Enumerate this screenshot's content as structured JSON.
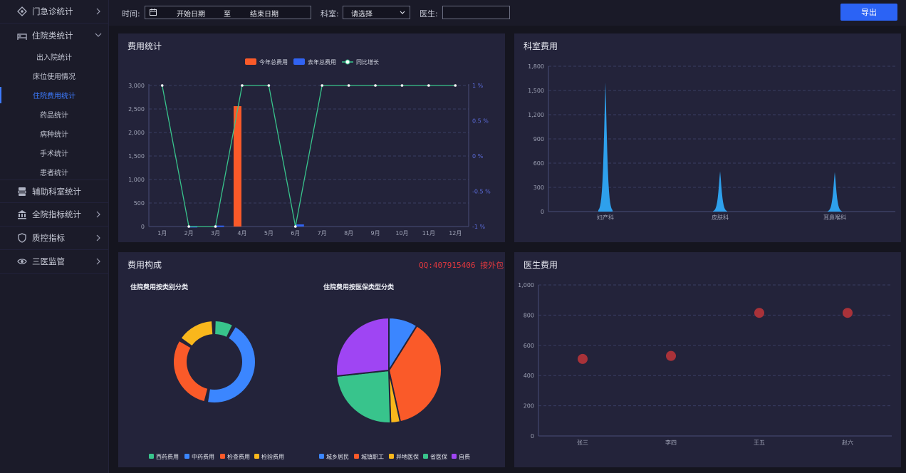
{
  "sidebar": {
    "items": [
      {
        "label": "门急诊统计",
        "icon": "diamond-icon",
        "expanded": false
      },
      {
        "label": "住院类统计",
        "icon": "bed-icon",
        "expanded": true
      },
      {
        "label": "辅助科室统计",
        "icon": "stack-icon",
        "expanded": false
      },
      {
        "label": "全院指标统计",
        "icon": "bank-icon",
        "expanded": false
      },
      {
        "label": "质控指标",
        "icon": "shield-icon",
        "expanded": false
      },
      {
        "label": "三医监管",
        "icon": "eye-icon",
        "expanded": false
      }
    ],
    "subitems": [
      "出入院统计",
      "床位使用情况",
      "住院费用统计",
      "药品统计",
      "病种统计",
      "手术统计",
      "患者统计"
    ],
    "active_subitem": "住院费用统计"
  },
  "toolbar": {
    "time_label": "时间:",
    "start_placeholder": "开始日期",
    "range_sep": "至",
    "end_placeholder": "结束日期",
    "dept_label": "科室:",
    "dept_value": "请选择",
    "doctor_label": "医生:",
    "doctor_value": "",
    "export_label": "导出"
  },
  "colors": {
    "accent": "#2b63f5",
    "orange": "#fa5a29",
    "blue": "#3163f2",
    "green": "#38c48c",
    "sky": "#2fa8f5",
    "red": "#b8343a"
  },
  "cost_stats": {
    "title": "费用统计",
    "chart_data": {
      "type": "bar",
      "categories": [
        "1月",
        "2月",
        "3月",
        "4月",
        "5月",
        "6月",
        "7月",
        "8月",
        "9月",
        "10月",
        "11月",
        "12月"
      ],
      "series": [
        {
          "name": "今年总费用",
          "type": "bar",
          "values": [
            0,
            0,
            0,
            2560,
            0,
            0,
            0,
            0,
            0,
            0,
            0,
            0
          ]
        },
        {
          "name": "去年总费用",
          "type": "bar",
          "values": [
            0,
            10,
            20,
            0,
            0,
            45,
            0,
            0,
            0,
            0,
            0,
            0
          ]
        },
        {
          "name": "同比增长",
          "type": "line",
          "axis": "right",
          "values": [
            1,
            -1,
            -1,
            1,
            1,
            -1,
            1,
            1,
            1,
            1,
            1,
            1
          ]
        }
      ],
      "y_ticks": [
        "0",
        "500",
        "1,000",
        "1,500",
        "2,000",
        "2,500",
        "3,000"
      ],
      "y_right_ticks": [
        "-1 %",
        "-0.5 %",
        "0 %",
        "0.5 %",
        "1 %"
      ],
      "ylim": [
        0,
        3000
      ],
      "y2lim": [
        -1,
        1
      ]
    }
  },
  "dept_cost": {
    "title": "科室费用",
    "chart_data": {
      "type": "area",
      "categories": [
        "妇产科",
        "皮肤科",
        "耳鼻喉科"
      ],
      "values": [
        1600,
        500,
        490
      ],
      "y_ticks": [
        "0",
        "300",
        "600",
        "900",
        "1,200",
        "1,500",
        "1,800"
      ],
      "ylim": [
        0,
        1800
      ]
    }
  },
  "cost_composition": {
    "title": "费用构成",
    "qq_text": "QQ:407915406 接外包",
    "donut": {
      "title": "住院费用按类别分类",
      "chart_data": {
        "type": "pie",
        "categories": [
          "西药费用",
          "中药费用",
          "检查费用",
          "检验费用"
        ],
        "values": [
          8,
          44,
          30,
          15
        ],
        "colors": [
          "#38c48c",
          "#3b86ff",
          "#fa5a29",
          "#f9b71c"
        ]
      }
    },
    "pie": {
      "title": "住院费用按医保类型分类",
      "chart_data": {
        "type": "pie",
        "categories": [
          "城乡居民",
          "城镇职工",
          "异地医保",
          "省医保",
          "自费"
        ],
        "values": [
          9,
          38,
          3,
          24,
          27
        ],
        "colors": [
          "#3b86ff",
          "#fa5a29",
          "#f9b71c",
          "#38c48c",
          "#9f45f3"
        ]
      }
    }
  },
  "doctor_cost": {
    "title": "医生费用",
    "chart_data": {
      "type": "scatter",
      "categories": [
        "张三",
        "李四",
        "王五",
        "赵六"
      ],
      "values": [
        510,
        530,
        815,
        815
      ],
      "y_ticks": [
        "0",
        "200",
        "400",
        "600",
        "800",
        "1,000"
      ],
      "ylim": [
        0,
        1000
      ]
    }
  }
}
